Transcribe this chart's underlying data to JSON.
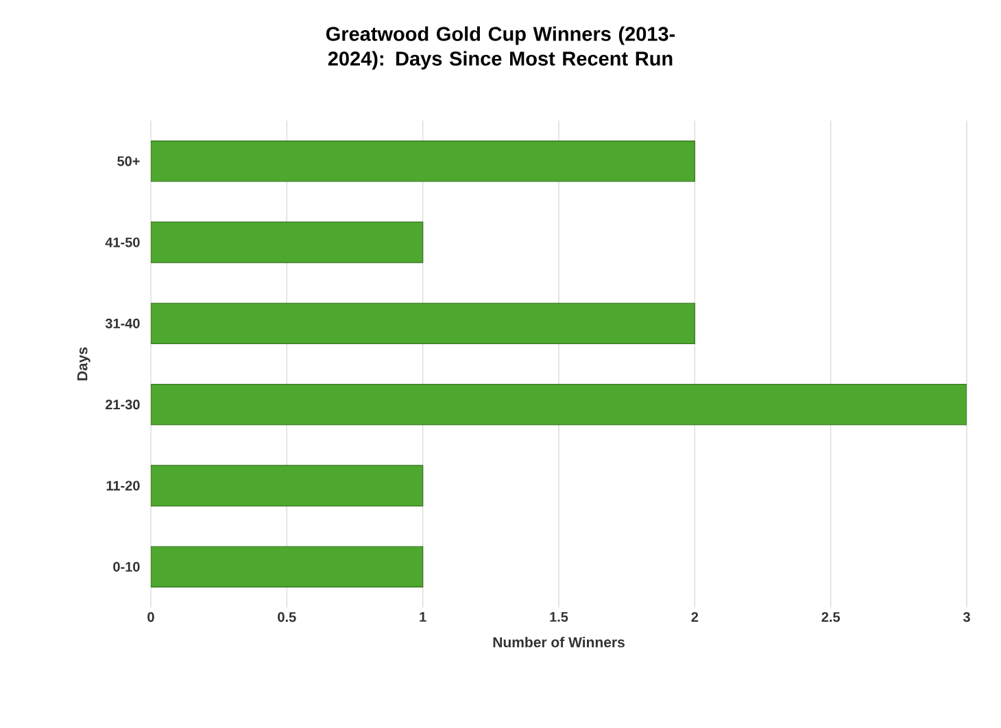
{
  "chart_data": {
    "type": "bar",
    "orientation": "horizontal",
    "title": "Greatwood Gold Cup Winners (2013-2024): Days Since Most Recent Run",
    "xlabel": "Number of Winners",
    "ylabel": "Days",
    "categories": [
      "50+",
      "41-50",
      "31-40",
      "21-30",
      "11-20",
      "0-10"
    ],
    "values": [
      2,
      1,
      2,
      3,
      1,
      1
    ],
    "color": "#4ea72e",
    "xlim": [
      0,
      3
    ],
    "xticks": [
      0,
      0.5,
      1,
      1.5,
      2,
      2.5,
      3
    ],
    "grid": "x"
  }
}
